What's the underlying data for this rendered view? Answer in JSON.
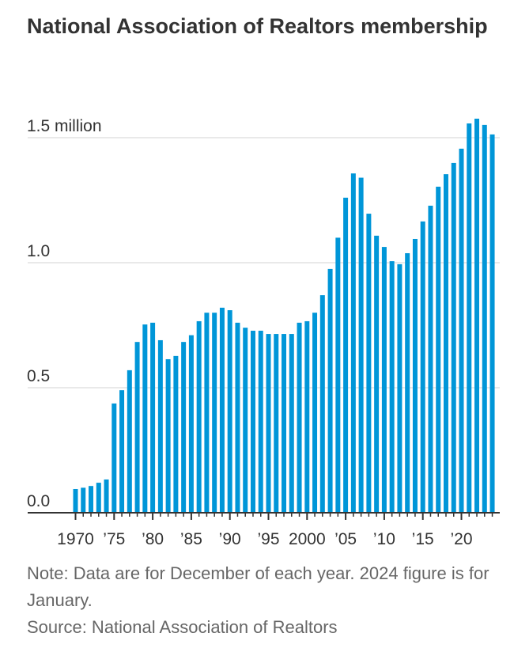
{
  "chart_data": {
    "type": "bar",
    "title": "National Association of Realtors membership",
    "xlabel": "",
    "ylabel": "",
    "ylim": [
      0,
      1.5
    ],
    "grid": true,
    "yticks": [
      {
        "value": 0,
        "label": "0.0"
      },
      {
        "value": 0.5,
        "label": "0.5"
      },
      {
        "value": 1.0,
        "label": "1.0"
      },
      {
        "value": 1.5,
        "label": "1.5 million"
      }
    ],
    "xticks": [
      {
        "year": 1970,
        "label": "1970"
      },
      {
        "year": 1975,
        "label": "’75"
      },
      {
        "year": 1980,
        "label": "’80"
      },
      {
        "year": 1985,
        "label": "’85"
      },
      {
        "year": 1990,
        "label": "’90"
      },
      {
        "year": 1995,
        "label": "’95"
      },
      {
        "year": 2000,
        "label": "2000"
      },
      {
        "year": 2005,
        "label": "’05"
      },
      {
        "year": 2010,
        "label": "’10"
      },
      {
        "year": 2015,
        "label": "’15"
      },
      {
        "year": 2020,
        "label": "’20"
      }
    ],
    "categories": [
      1970,
      1971,
      1972,
      1973,
      1974,
      1975,
      1976,
      1977,
      1978,
      1979,
      1980,
      1981,
      1982,
      1983,
      1984,
      1985,
      1986,
      1987,
      1988,
      1989,
      1990,
      1991,
      1992,
      1993,
      1994,
      1995,
      1996,
      1997,
      1998,
      1999,
      2000,
      2001,
      2002,
      2003,
      2004,
      2005,
      2006,
      2007,
      2008,
      2009,
      2010,
      2011,
      2012,
      2013,
      2014,
      2015,
      2016,
      2017,
      2018,
      2019,
      2020,
      2021,
      2022,
      2023,
      2024
    ],
    "values": [
      0.095,
      0.1,
      0.107,
      0.12,
      0.133,
      0.437,
      0.49,
      0.57,
      0.683,
      0.753,
      0.76,
      0.69,
      0.614,
      0.627,
      0.683,
      0.71,
      0.766,
      0.8,
      0.8,
      0.82,
      0.81,
      0.76,
      0.74,
      0.728,
      0.728,
      0.715,
      0.715,
      0.715,
      0.715,
      0.76,
      0.766,
      0.8,
      0.87,
      0.975,
      1.1,
      1.26,
      1.357,
      1.34,
      1.196,
      1.108,
      1.063,
      1.006,
      0.994,
      1.038,
      1.095,
      1.165,
      1.228,
      1.304,
      1.354,
      1.399,
      1.456,
      1.557,
      1.576,
      1.551,
      1.513
    ],
    "color": "#0096d8"
  },
  "notes": {
    "note": "Note: Data are for December of each year. 2024 figure is for January.",
    "source": "Source: National Association of Realtors"
  }
}
